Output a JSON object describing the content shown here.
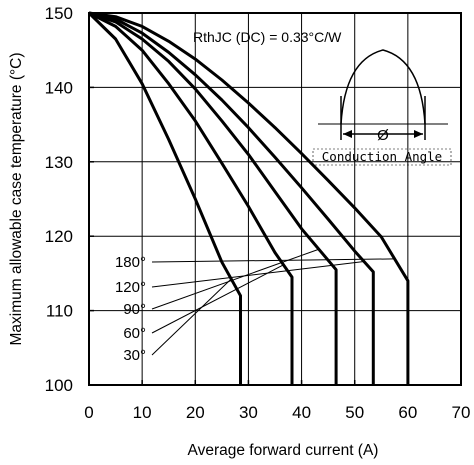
{
  "chart_data": {
    "type": "line",
    "xlabel": "Average forward current (A)",
    "ylabel": "Maximum allowable case temperature (°C)",
    "xlim": [
      0,
      70
    ],
    "ylim": [
      100,
      150
    ],
    "xticks": [
      0,
      10,
      20,
      30,
      40,
      50,
      60,
      70
    ],
    "yticks": [
      100,
      110,
      120,
      130,
      140,
      150
    ],
    "grid": true,
    "annotation": "RthJC (DC) = 0.33°C/W",
    "inset": {
      "symbol": "Ø",
      "caption": "Conduction Angle"
    },
    "series": [
      {
        "name": "30°",
        "x": [
          0,
          5,
          10,
          15,
          20,
          25,
          28.5,
          28.5
        ],
        "y": [
          150,
          146.5,
          140.5,
          133,
          125,
          116.5,
          112,
          100
        ]
      },
      {
        "name": "60°",
        "x": [
          0,
          5,
          10,
          15,
          20,
          25,
          30,
          35,
          38.2,
          38.2
        ],
        "y": [
          150,
          148.2,
          145,
          140.5,
          135.5,
          129.8,
          124,
          117.8,
          114.5,
          100
        ]
      },
      {
        "name": "90°",
        "x": [
          0,
          5,
          10,
          15,
          20,
          25,
          30,
          35,
          40,
          46.5,
          46.5
        ],
        "y": [
          150,
          148.8,
          146.5,
          143.5,
          139.8,
          135.5,
          131,
          126,
          121,
          115.5,
          100
        ]
      },
      {
        "name": "120°",
        "x": [
          0,
          5,
          10,
          15,
          20,
          25,
          30,
          35,
          40,
          45,
          50,
          53.5,
          53.5
        ],
        "y": [
          150,
          149.2,
          147.3,
          144.7,
          141.7,
          138.3,
          134.6,
          130.6,
          126.5,
          122.3,
          118,
          115.2,
          100
        ]
      },
      {
        "name": "180°",
        "x": [
          0,
          5,
          10,
          15,
          20,
          25,
          30,
          35,
          40,
          45,
          50,
          55,
          60,
          60
        ],
        "y": [
          150,
          149.5,
          148.2,
          146.2,
          143.8,
          141,
          137.9,
          134.6,
          131.1,
          127.5,
          123.8,
          119.9,
          114,
          100
        ]
      }
    ]
  }
}
